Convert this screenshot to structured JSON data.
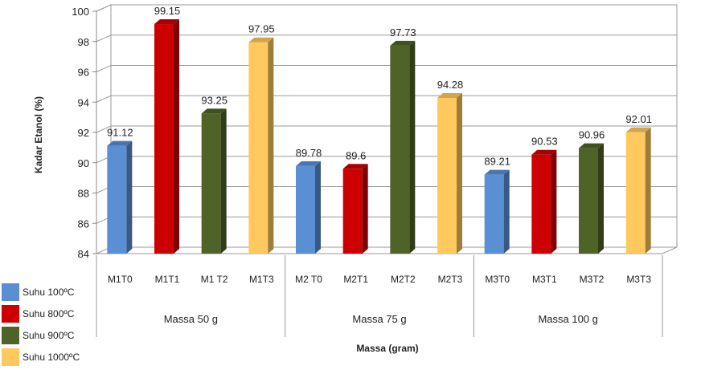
{
  "chart_data": {
    "type": "bar",
    "xlabel": "Massa (gram)",
    "ylabel": "Kadar Etanol (%)",
    "ylim": [
      84,
      100
    ],
    "yticks": [
      "84",
      "86",
      "88",
      "90",
      "92",
      "94",
      "96",
      "98",
      "100"
    ],
    "grid": true,
    "legend_position": "bottom-left",
    "groups": [
      {
        "label": "Massa 50 g",
        "bars": [
          {
            "category": "M1T0",
            "value": 91.12,
            "label": "91.12",
            "series": 0
          },
          {
            "category": "M1T1",
            "value": 99.15,
            "label": "99.15",
            "series": 1
          },
          {
            "category": "M1 T2",
            "value": 93.25,
            "label": "93.25",
            "series": 2
          },
          {
            "category": "M1T3",
            "value": 97.95,
            "label": "97.95",
            "series": 3
          }
        ]
      },
      {
        "label": "Massa 75 g",
        "bars": [
          {
            "category": "M2 T0",
            "value": 89.78,
            "label": "89.78",
            "series": 0
          },
          {
            "category": "M2T1",
            "value": 89.6,
            "label": "89.6",
            "series": 1
          },
          {
            "category": "M2T2",
            "value": 97.73,
            "label": "97.73",
            "series": 2
          },
          {
            "category": "M2T3",
            "value": 94.28,
            "label": "94.28",
            "series": 3
          }
        ]
      },
      {
        "label": "Massa 100 g",
        "bars": [
          {
            "category": "M3T0",
            "value": 89.21,
            "label": "89.21",
            "series": 0
          },
          {
            "category": "M3T1",
            "value": 90.53,
            "label": "90.53",
            "series": 1
          },
          {
            "category": "M3T2",
            "value": 90.96,
            "label": "90.96",
            "series": 2
          },
          {
            "category": "M3T3",
            "value": 92.01,
            "label": "92.01",
            "series": 3
          }
        ]
      }
    ],
    "series": [
      {
        "name": "Suhu 100ºC",
        "color": "#5b8fd4"
      },
      {
        "name": "Suhu  800ºC",
        "color": "#cc0000"
      },
      {
        "name": "Suhu 900ºC",
        "color": "#4f6228"
      },
      {
        "name": "Suhu 1000ºC",
        "color": "#ffc95e"
      }
    ]
  }
}
